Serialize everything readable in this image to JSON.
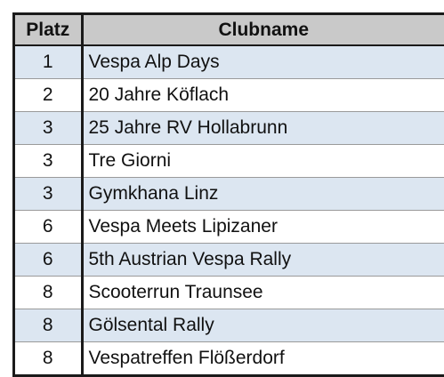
{
  "table": {
    "headers": {
      "platz": "Platz",
      "clubname": "Clubname"
    },
    "rows": [
      {
        "platz": "1",
        "clubname": "Vespa Alp Days"
      },
      {
        "platz": "2",
        "clubname": "20 Jahre Köflach"
      },
      {
        "platz": "3",
        "clubname": "25 Jahre RV Hollabrunn"
      },
      {
        "platz": "3",
        "clubname": "Tre Giorni"
      },
      {
        "platz": "3",
        "clubname": "Gymkhana Linz"
      },
      {
        "platz": "6",
        "clubname": "Vespa Meets Lipizaner"
      },
      {
        "platz": "6",
        "clubname": "5th Austrian Vespa Rally"
      },
      {
        "platz": "8",
        "clubname": "Scooterrun Traunsee"
      },
      {
        "platz": "8",
        "clubname": "Gölsental Rally"
      },
      {
        "platz": "8",
        "clubname": "Vespatreffen Flößerdorf"
      }
    ]
  },
  "colors": {
    "header_background": "#c9c9c9",
    "band_row_background": "#dce6f1",
    "plain_row_background": "#ffffff",
    "border": "#1a1a1a"
  }
}
